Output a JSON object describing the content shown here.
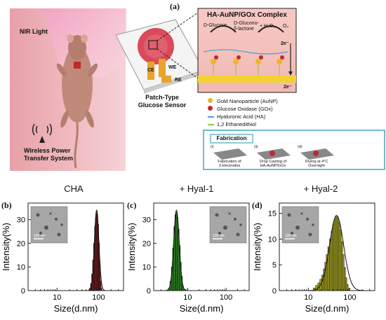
{
  "figure": {
    "panel_a_label": "(a)",
    "schematic": {
      "nir_label": "NIR Light",
      "wireless_label_1": "Wireless Power",
      "wireless_label_2": "Transfer System",
      "sensor_label_1": "Patch-Type",
      "sensor_label_2": "Glucose Sensor",
      "electrode_ce": "CE",
      "electrode_we": "WE",
      "electrode_re": "RE",
      "complex_title": "HA-AuNP/GOx Complex",
      "reaction_glucose": "D-Glucose",
      "reaction_lactone_1": "D-Glucono-",
      "reaction_lactone_2": "δ-lactone",
      "reaction_h2o2": "+ H₂O₂",
      "reaction_o2": "O₂",
      "electron_1": "2e⁻",
      "electron_2": "2e⁻",
      "legend": [
        {
          "label": "Gold Nanoparticle (AuNP)",
          "color": "#f0b428"
        },
        {
          "label": "Glucose Oxidase (GOx)",
          "color": "#c0282d"
        },
        {
          "label": "Hyaluronic Acid (HA)",
          "color": "#4a9fd8"
        },
        {
          "label": "1,2 Ethanedithiol",
          "color": "#8cc63f"
        }
      ],
      "fabrication_title": "Fabrication",
      "fab_steps": [
        {
          "num": "(i)",
          "text_1": "Fabrication of",
          "text_2": "3 Electrodes"
        },
        {
          "num": "(ii)",
          "text_1": "Drop Casting of",
          "text_2": "HA-AuNP/GOx"
        },
        {
          "num": "(iii)",
          "text_1": "Drying at 4°C",
          "text_2": "Overnight"
        }
      ]
    }
  },
  "chart_data": [
    {
      "type": "bar",
      "panel": "(b)",
      "title": "CHA",
      "xlabel": "Size(d.nm)",
      "ylabel": "Intensity(%)",
      "x_scale": "log",
      "xlim": [
        2,
        400
      ],
      "ylim": [
        0,
        37
      ],
      "xticks": [
        10,
        100
      ],
      "yticks": [
        0,
        10,
        20,
        30
      ],
      "color": "#8b1a1a",
      "inset_scale": "100 nm",
      "bars": [
        {
          "x": 62,
          "y": 1
        },
        {
          "x": 66,
          "y": 3
        },
        {
          "x": 70,
          "y": 7
        },
        {
          "x": 74,
          "y": 13
        },
        {
          "x": 78,
          "y": 20
        },
        {
          "x": 82,
          "y": 27
        },
        {
          "x": 86,
          "y": 31
        },
        {
          "x": 90,
          "y": 33
        },
        {
          "x": 94,
          "y": 32
        },
        {
          "x": 98,
          "y": 28
        },
        {
          "x": 103,
          "y": 20
        },
        {
          "x": 108,
          "y": 11
        },
        {
          "x": 113,
          "y": 4
        },
        {
          "x": 118,
          "y": 1
        }
      ],
      "fit_peak": {
        "x": 90,
        "y": 34
      }
    },
    {
      "type": "bar",
      "panel": "(c)",
      "title": "+ Hyal-1",
      "xlabel": "Size(d.nm)",
      "ylabel": "Intensity(%)",
      "x_scale": "log",
      "xlim": [
        1.3,
        400
      ],
      "ylim": [
        0,
        37
      ],
      "xticks": [
        10,
        100
      ],
      "yticks": [
        0,
        10,
        20,
        30
      ],
      "color": "#2e8b22",
      "inset_scale": "100 nm",
      "bars": [
        {
          "x": 3.3,
          "y": 1
        },
        {
          "x": 3.6,
          "y": 4
        },
        {
          "x": 3.9,
          "y": 10
        },
        {
          "x": 4.2,
          "y": 18
        },
        {
          "x": 4.5,
          "y": 27
        },
        {
          "x": 4.8,
          "y": 32
        },
        {
          "x": 5.1,
          "y": 33
        },
        {
          "x": 5.4,
          "y": 31
        },
        {
          "x": 5.8,
          "y": 26
        },
        {
          "x": 6.2,
          "y": 19
        },
        {
          "x": 6.6,
          "y": 12
        },
        {
          "x": 7.0,
          "y": 6
        },
        {
          "x": 7.5,
          "y": 2
        }
      ],
      "fit_peak": {
        "x": 5.1,
        "y": 34
      }
    },
    {
      "type": "bar",
      "panel": "(d)",
      "title": "+ Hyal-2",
      "xlabel": "Size(d.nm)",
      "ylabel": "Intensity(%)",
      "x_scale": "log",
      "xlim": [
        2,
        400
      ],
      "ylim": [
        0,
        17
      ],
      "xticks": [
        10,
        100
      ],
      "yticks": [
        0,
        5,
        10,
        15
      ],
      "color": "#9c9a1e",
      "inset_scale": "100 nm",
      "bars": [
        {
          "x": 14,
          "y": 0.5
        },
        {
          "x": 16,
          "y": 1
        },
        {
          "x": 18,
          "y": 1.5
        },
        {
          "x": 20,
          "y": 2.2
        },
        {
          "x": 22,
          "y": 3
        },
        {
          "x": 24,
          "y": 4.2
        },
        {
          "x": 26,
          "y": 5.5
        },
        {
          "x": 28,
          "y": 7
        },
        {
          "x": 31,
          "y": 8.5
        },
        {
          "x": 34,
          "y": 10
        },
        {
          "x": 37,
          "y": 11.5
        },
        {
          "x": 40,
          "y": 12.8
        },
        {
          "x": 43,
          "y": 13.8
        },
        {
          "x": 47,
          "y": 14.4
        },
        {
          "x": 51,
          "y": 14.2
        },
        {
          "x": 55,
          "y": 13.3
        },
        {
          "x": 60,
          "y": 11.8
        },
        {
          "x": 65,
          "y": 9.5
        },
        {
          "x": 70,
          "y": 7
        },
        {
          "x": 76,
          "y": 4.5
        },
        {
          "x": 82,
          "y": 2.5
        },
        {
          "x": 88,
          "y": 1.2
        },
        {
          "x": 95,
          "y": 0.4
        }
      ],
      "fit_peak": {
        "x": 48,
        "y": 14.6
      }
    }
  ]
}
